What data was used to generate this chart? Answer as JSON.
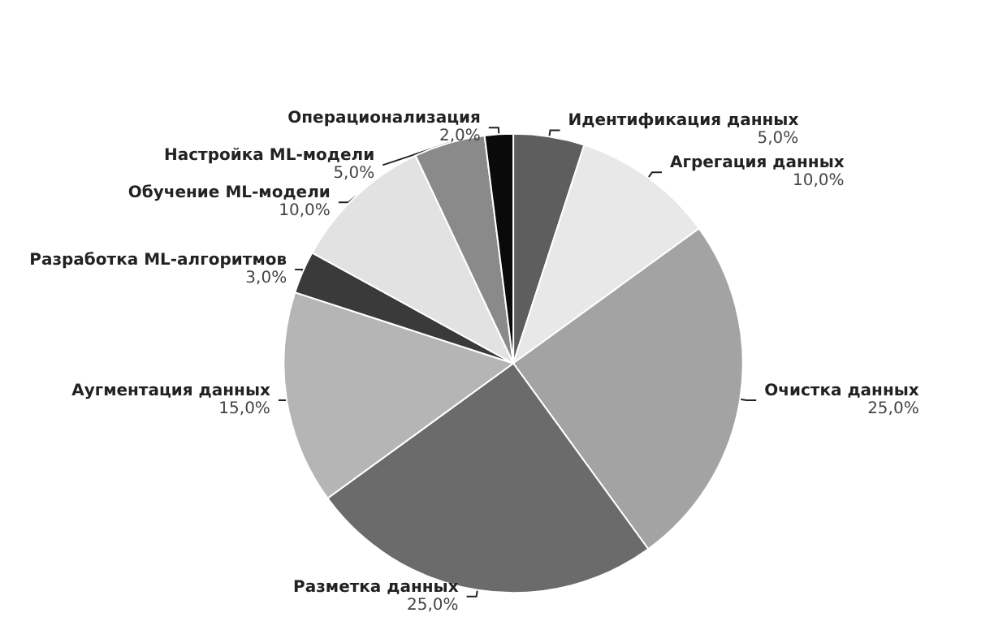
{
  "chart_data": {
    "type": "pie",
    "categories": [
      "Идентификация данных",
      "Агрегация данных",
      "Очистка данных",
      "Разметка данных",
      "Аугментация данных",
      "Разработка ML-алгоритмов",
      "Обучение ML-модели",
      "Настройка ML-модели",
      "Операционализация"
    ],
    "values": [
      5,
      10,
      25,
      25,
      15,
      3,
      10,
      5,
      2
    ],
    "value_labels": [
      "5,0%",
      "10,0%",
      "25,0%",
      "25,0%",
      "15,0%",
      "3,0%",
      "10,0%",
      "5,0%",
      "2,0%"
    ],
    "colors": [
      "#5e5e5e",
      "#e8e8e8",
      "#a3a3a3",
      "#6b6b6b",
      "#b5b5b5",
      "#3a3a3a",
      "#e2e2e2",
      "#8a8a8a",
      "#0a0a0a"
    ],
    "legend": false
  }
}
